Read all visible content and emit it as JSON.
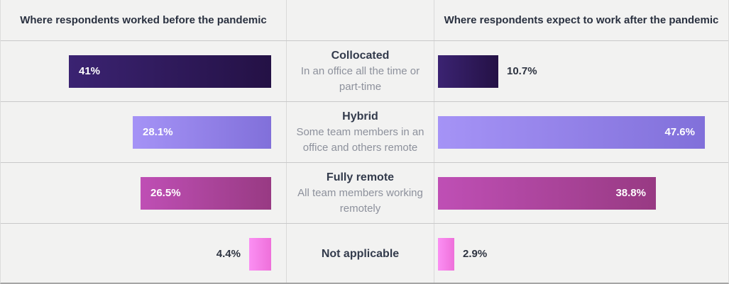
{
  "chart_data": {
    "type": "bar",
    "layout": "butterfly-comparison",
    "title_left": "Where respondents worked before the pandemic",
    "title_right": "Where respondents expect to work after the pandemic",
    "categories": [
      {
        "label": "Collocated",
        "description": "In an office all the time or part-time"
      },
      {
        "label": "Hybrid",
        "description": "Some team members in an office and others remote"
      },
      {
        "label": "Fully remote",
        "description": "All team members working remotely"
      },
      {
        "label": "Not applicable",
        "description": ""
      }
    ],
    "series": [
      {
        "name": "before",
        "values": [
          41,
          28.1,
          26.5,
          4.4
        ],
        "labels": [
          "41%",
          "28.1%",
          "26.5%",
          "4.4%"
        ]
      },
      {
        "name": "after",
        "values": [
          10.7,
          47.6,
          38.8,
          2.9
        ],
        "labels": [
          "10.7%",
          "47.6%",
          "38.8%",
          "2.9%"
        ]
      }
    ],
    "bar_colors": [
      [
        "#3b2372",
        "#241145"
      ],
      [
        "#a593f6",
        "#8170da"
      ],
      [
        "#bf4fb5",
        "#983a83"
      ],
      [
        "#fb8ff3",
        "#ee70da"
      ]
    ],
    "background": "#f2f2f1",
    "grid": "row dividers only",
    "legend": "none",
    "value_label_color_inside": "#ffffff",
    "value_label_color_outside": "#2e3441"
  }
}
